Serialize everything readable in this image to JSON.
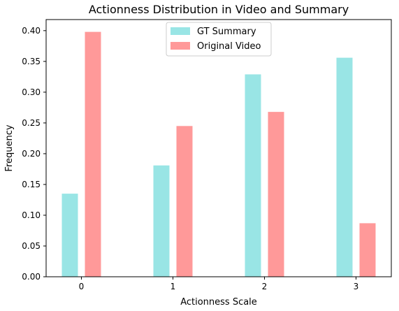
{
  "chart_data": {
    "type": "bar",
    "title": "Actionness Distribution in Video and Summary",
    "xlabel": "Actionness Scale",
    "ylabel": "Frequency",
    "categories": [
      "0",
      "1",
      "2",
      "3"
    ],
    "ylim": [
      0,
      0.4
    ],
    "yticks": [
      "0.00",
      "0.05",
      "0.10",
      "0.15",
      "0.20",
      "0.25",
      "0.30",
      "0.35",
      "0.40"
    ],
    "series": [
      {
        "name": "GT Summary",
        "color": "#99e5e5",
        "values": [
          0.135,
          0.181,
          0.329,
          0.356
        ]
      },
      {
        "name": "Original Video",
        "color": "#ff9999",
        "values": [
          0.398,
          0.245,
          0.268,
          0.087
        ]
      }
    ],
    "legend_position": "upper center",
    "grid": false
  }
}
